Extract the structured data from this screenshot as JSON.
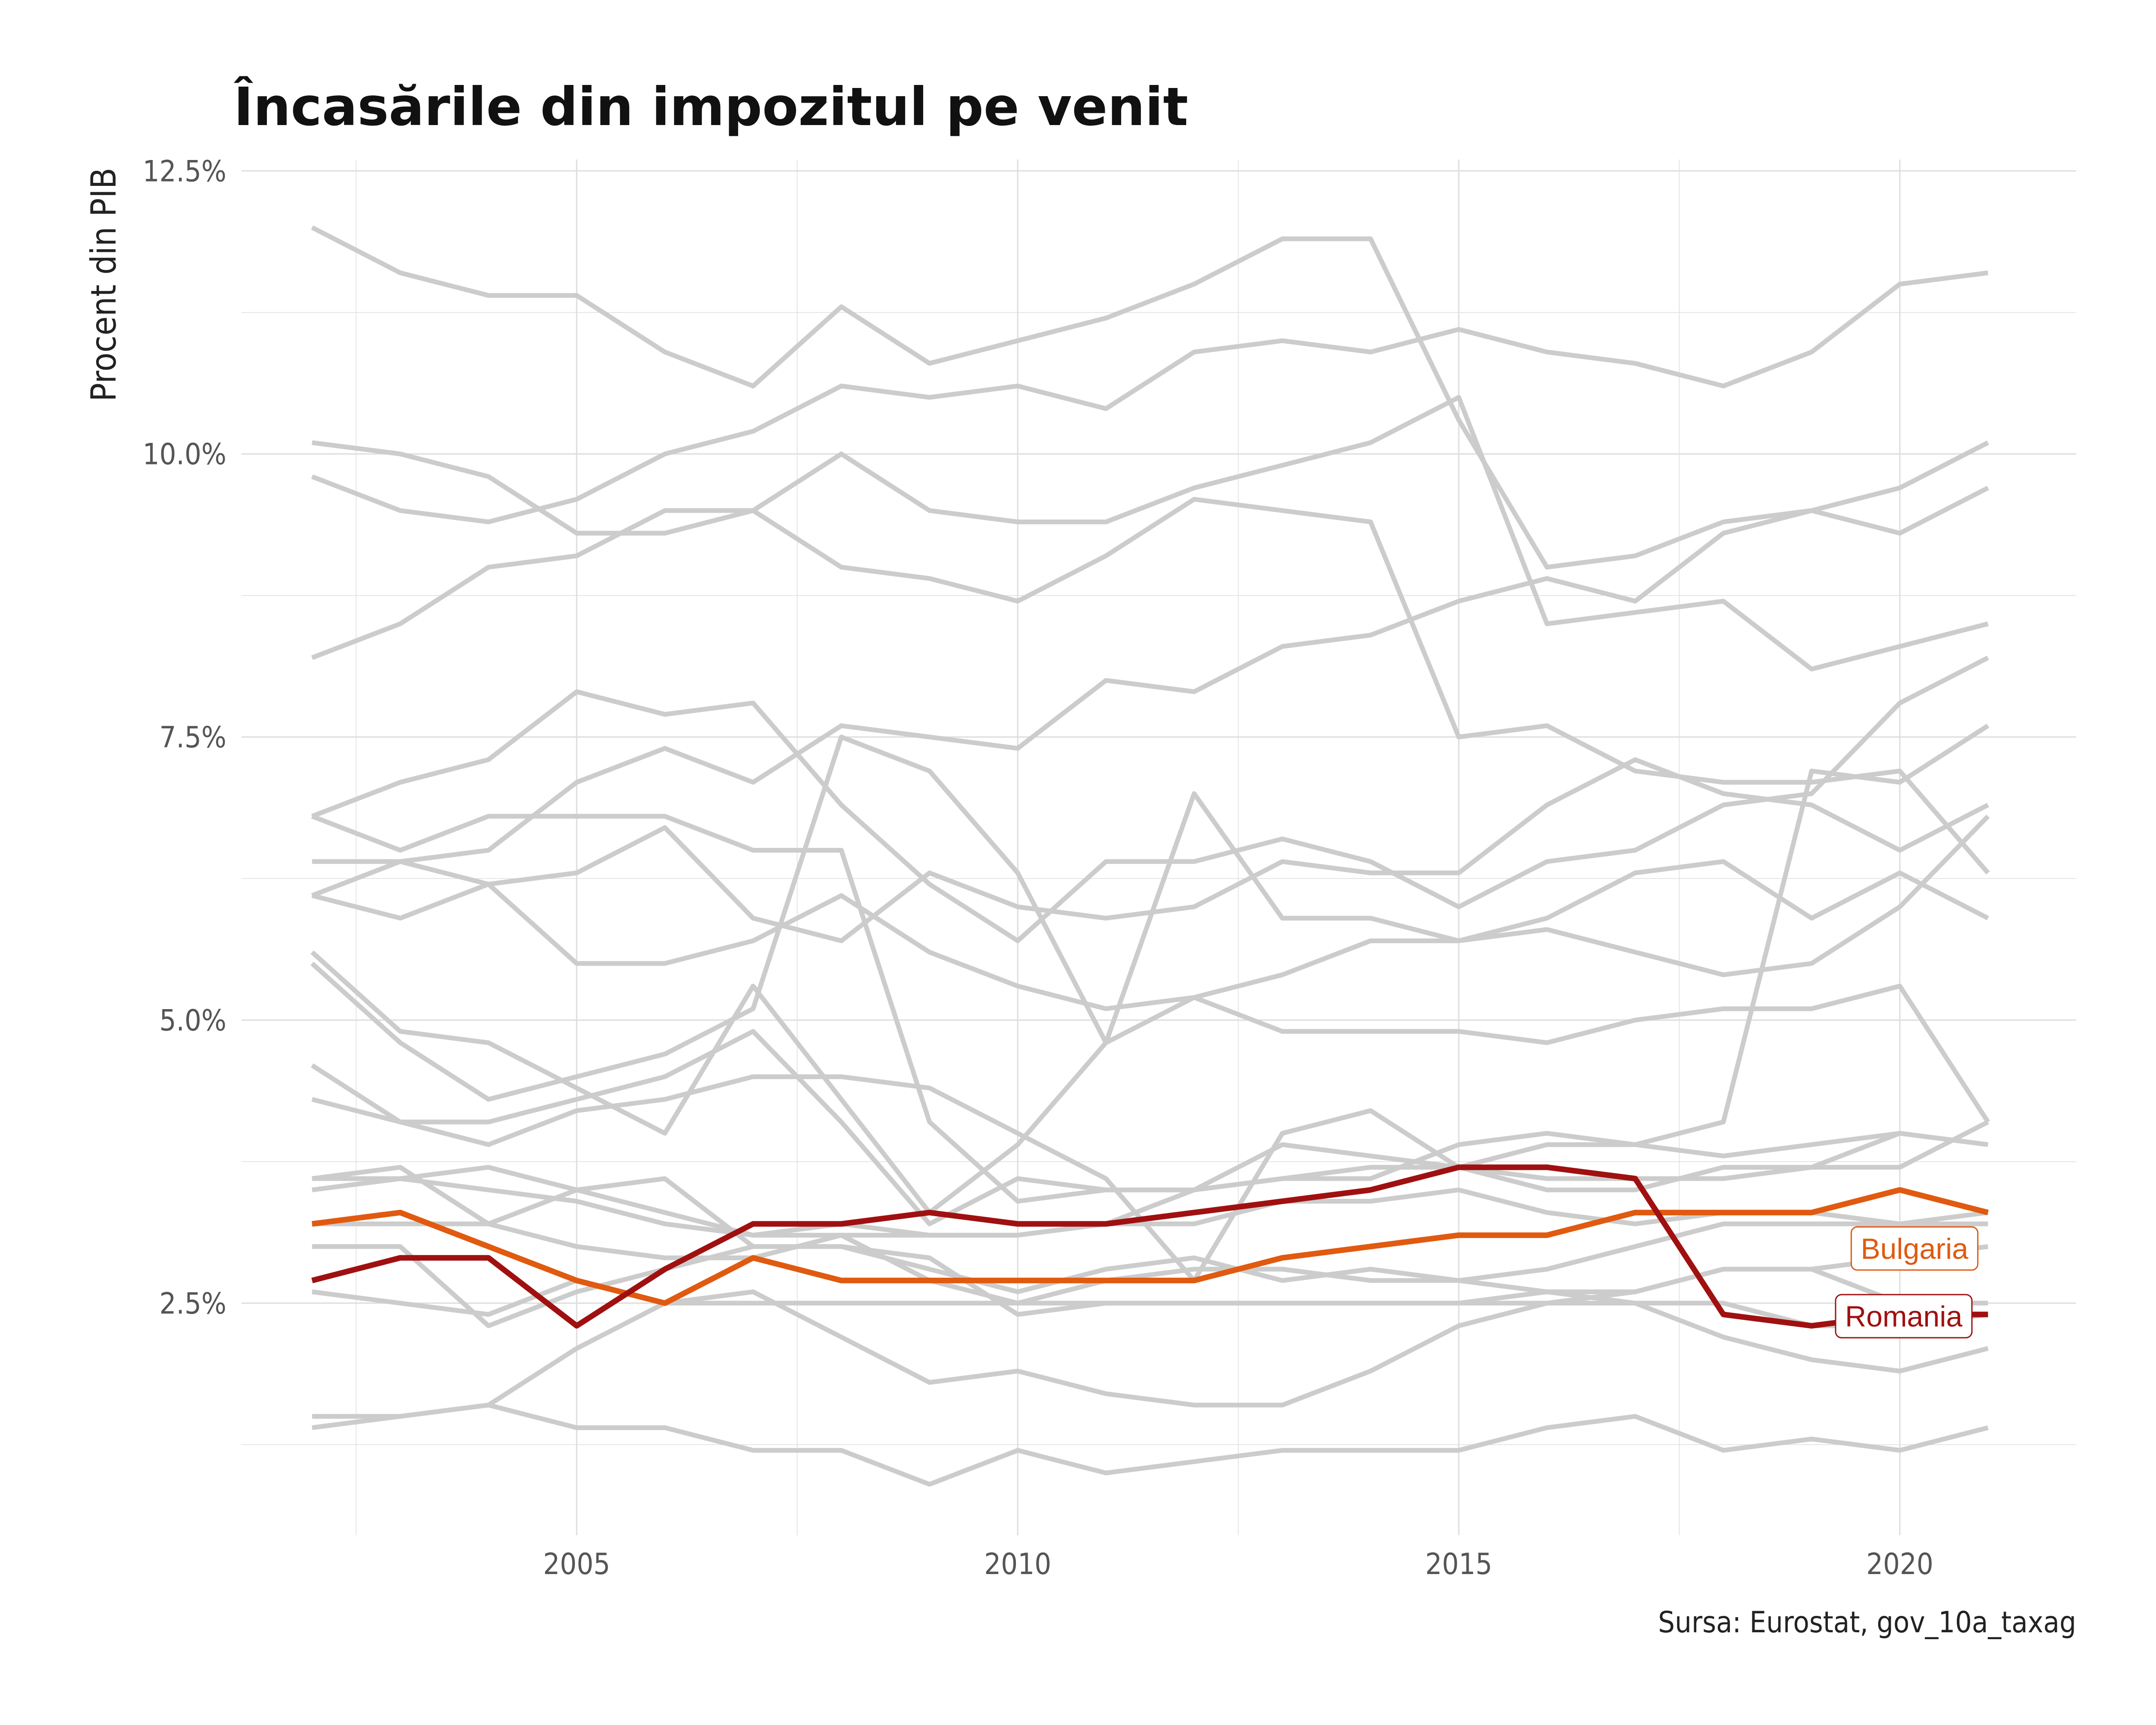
{
  "chart_data": {
    "type": "line",
    "title": "Încasările din impozitul pe venit",
    "ylabel": "Procent din PIB",
    "xlabel": "",
    "caption": "Sursa: Eurostat, gov_10a_taxag",
    "x": [
      2002,
      2003,
      2004,
      2005,
      2006,
      2007,
      2008,
      2009,
      2010,
      2011,
      2012,
      2013,
      2014,
      2015,
      2016,
      2017,
      2018,
      2019,
      2020,
      2021
    ],
    "xlim": [
      2001.2,
      2022.0
    ],
    "ylim": [
      0.45,
      12.6
    ],
    "xticks": [
      "2005",
      "2010",
      "2015",
      "2020"
    ],
    "xtick_values": [
      2005,
      2010,
      2015,
      2020
    ],
    "yticks": [
      "2.5%",
      "5.0%",
      "7.5%",
      "10.0%",
      "12.5%"
    ],
    "ytick_values": [
      2.5,
      5.0,
      7.5,
      10.0,
      12.5
    ],
    "grid": true,
    "colors": {
      "background_series": "#cccccc",
      "grid": "#dddddd",
      "bulgaria": "#e05a10",
      "romania": "#a01010"
    },
    "highlight": [
      {
        "name": "Bulgaria",
        "color": "#e05a10",
        "values": [
          3.2,
          3.3,
          3.0,
          2.7,
          2.5,
          2.9,
          2.7,
          2.7,
          2.7,
          2.7,
          2.7,
          2.9,
          3.0,
          3.1,
          3.1,
          3.3,
          3.3,
          3.3,
          3.5,
          3.3
        ]
      },
      {
        "name": "Romania",
        "color": "#a01010",
        "values": [
          2.7,
          2.9,
          2.9,
          2.3,
          2.8,
          3.2,
          3.2,
          3.3,
          3.2,
          3.2,
          3.3,
          3.4,
          3.5,
          3.7,
          3.7,
          3.6,
          2.4,
          2.3,
          2.4,
          2.4
        ]
      }
    ],
    "series": [
      {
        "values": [
          12.0,
          11.6,
          11.4,
          11.4,
          10.9,
          10.6,
          11.3,
          10.8,
          11.0,
          11.2,
          11.5,
          11.9,
          11.9,
          10.3,
          9.0,
          9.1,
          9.4,
          9.5,
          9.3,
          9.7
        ]
      },
      {
        "values": [
          10.1,
          10.0,
          9.8,
          9.3,
          9.3,
          9.5,
          10.0,
          9.5,
          9.4,
          9.4,
          9.7,
          9.9,
          10.1,
          10.5,
          8.5,
          8.6,
          8.7,
          8.1,
          8.3,
          8.5
        ]
      },
      {
        "values": [
          9.8,
          9.5,
          9.4,
          9.6,
          10.0,
          10.2,
          10.6,
          10.5,
          10.6,
          10.4,
          10.9,
          11.0,
          10.9,
          11.1,
          10.9,
          10.8,
          10.6,
          10.9,
          11.5,
          11.6
        ]
      },
      {
        "values": [
          8.2,
          8.5,
          9.0,
          9.1,
          9.5,
          9.5,
          9.0,
          8.9,
          8.7,
          9.1,
          9.6,
          9.5,
          9.4,
          7.5,
          7.6,
          7.2,
          7.1,
          7.1,
          7.2,
          6.3
        ]
      },
      {
        "values": [
          6.8,
          7.1,
          7.3,
          7.9,
          7.7,
          7.8,
          6.9,
          6.2,
          5.7,
          6.4,
          6.4,
          6.6,
          6.4,
          6.0,
          6.4,
          6.5,
          6.9,
          7.0,
          7.8,
          8.2
        ]
      },
      {
        "values": [
          6.8,
          6.5,
          6.8,
          6.8,
          6.8,
          6.5,
          6.5,
          4.1,
          3.4,
          3.5,
          3.5,
          3.9,
          3.8,
          3.7,
          3.5,
          3.5,
          3.7,
          3.7,
          3.7,
          4.1
        ]
      },
      {
        "values": [
          6.4,
          6.4,
          6.2,
          5.5,
          5.5,
          5.7,
          6.1,
          5.6,
          5.3,
          5.1,
          5.2,
          4.9,
          4.9,
          4.9,
          4.8,
          5.0,
          5.1,
          5.1,
          5.3,
          4.1
        ]
      },
      {
        "values": [
          6.1,
          5.9,
          6.2,
          6.3,
          6.7,
          5.9,
          5.7,
          6.3,
          6.0,
          5.9,
          6.0,
          6.4,
          6.3,
          6.3,
          6.9,
          7.3,
          7.0,
          6.9,
          6.5,
          6.9
        ]
      },
      {
        "values": [
          6.1,
          6.4,
          6.5,
          7.1,
          7.4,
          7.1,
          7.6,
          7.5,
          7.4,
          8.0,
          7.9,
          8.3,
          8.4,
          8.7,
          8.9,
          8.7,
          9.3,
          9.5,
          9.7,
          10.1
        ]
      },
      {
        "values": [
          5.6,
          4.9,
          4.8,
          4.4,
          4.0,
          5.3,
          4.3,
          3.3,
          3.9,
          4.8,
          5.2,
          5.4,
          5.7,
          5.7,
          5.8,
          5.6,
          5.4,
          5.5,
          6.0,
          6.8
        ]
      },
      {
        "values": [
          5.5,
          4.8,
          4.3,
          4.5,
          4.7,
          5.1,
          7.5,
          7.2,
          6.3,
          4.8,
          7.0,
          5.9,
          5.9,
          5.7,
          5.9,
          6.3,
          6.4,
          5.9,
          6.3,
          5.9
        ]
      },
      {
        "values": [
          4.6,
          4.1,
          4.1,
          4.3,
          4.5,
          4.9,
          4.1,
          3.2,
          3.6,
          3.5,
          3.5,
          3.6,
          3.6,
          3.9,
          4.0,
          3.9,
          4.1,
          7.2,
          7.1,
          7.6
        ]
      },
      {
        "values": [
          4.3,
          4.1,
          3.9,
          4.2,
          4.3,
          4.5,
          4.5,
          4.4,
          4.0,
          3.6,
          2.7,
          4.0,
          4.2,
          3.7,
          3.6,
          3.6,
          3.6,
          3.7,
          4.0,
          3.9
        ]
      },
      {
        "values": [
          3.6,
          3.7,
          3.2,
          3.5,
          3.6,
          3.0,
          3.0,
          2.9,
          2.4,
          2.5,
          2.5,
          2.5,
          2.5,
          2.5,
          2.6,
          2.6,
          2.8,
          2.8,
          2.5,
          2.5
        ]
      },
      {
        "values": [
          3.6,
          3.6,
          3.5,
          3.4,
          3.2,
          3.1,
          3.1,
          3.1,
          3.1,
          3.2,
          3.5,
          3.6,
          3.7,
          3.7,
          3.9,
          3.9,
          3.8,
          3.9,
          4.0,
          3.9
        ]
      },
      {
        "values": [
          3.5,
          3.6,
          3.7,
          3.5,
          3.3,
          3.1,
          3.2,
          3.1,
          3.1,
          3.2,
          3.2,
          3.4,
          3.4,
          3.5,
          3.3,
          3.2,
          3.3,
          3.3,
          3.2,
          3.3
        ]
      },
      {
        "values": [
          3.2,
          3.2,
          3.2,
          3.0,
          2.9,
          2.9,
          3.1,
          2.7,
          2.5,
          2.7,
          2.8,
          2.8,
          2.7,
          2.7,
          2.6,
          2.5,
          2.2,
          2.0,
          1.9,
          2.1
        ]
      },
      {
        "values": [
          3.0,
          3.0,
          2.3,
          2.6,
          2.8,
          3.0,
          3.0,
          2.8,
          2.6,
          2.8,
          2.9,
          2.7,
          2.8,
          2.7,
          2.8,
          3.0,
          3.2,
          3.2,
          3.2,
          3.2
        ]
      },
      {
        "values": [
          2.6,
          2.5,
          2.4,
          2.7,
          2.5,
          2.6,
          2.2,
          1.8,
          1.9,
          1.7,
          1.6,
          1.6,
          1.9,
          2.3,
          2.5,
          2.6,
          2.8,
          2.8,
          2.9,
          3.0
        ]
      },
      {
        "values": [
          1.5,
          1.5,
          1.6,
          2.1,
          2.5,
          2.5,
          2.5,
          2.5,
          2.5,
          2.5,
          2.5,
          2.5,
          2.5,
          2.5,
          2.5,
          2.5,
          2.5,
          2.3,
          2.3,
          2.4
        ]
      },
      {
        "values": [
          1.4,
          1.5,
          1.6,
          1.4,
          1.4,
          1.2,
          1.2,
          0.9,
          1.2,
          1.0,
          1.1,
          1.2,
          1.2,
          1.2,
          1.4,
          1.5,
          1.2,
          1.3,
          1.2,
          1.4
        ]
      }
    ]
  }
}
